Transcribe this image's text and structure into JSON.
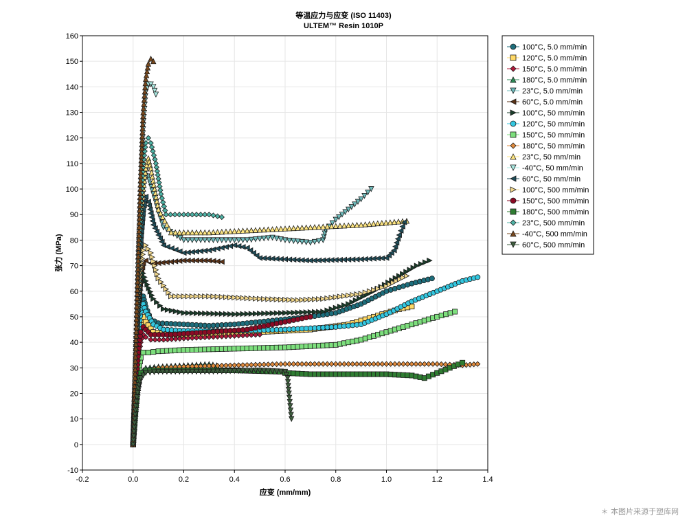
{
  "chart_data": {
    "type": "scatter",
    "title": "等温应力与应变 (ISO 11403)",
    "subtitle": "ULTEM™ Resin 1010P",
    "xlabel": "应变 (mm/mm)",
    "ylabel": "张力 (MPa)",
    "xlim": [
      -0.2,
      1.4
    ],
    "ylim": [
      -10,
      160
    ],
    "xticks": [
      "-0.2",
      "0.0",
      "0.2",
      "0.4",
      "0.6",
      "0.8",
      "1.0",
      "1.2",
      "1.4"
    ],
    "yticks": [
      "-10",
      "0",
      "10",
      "20",
      "30",
      "40",
      "50",
      "60",
      "70",
      "80",
      "90",
      "100",
      "110",
      "120",
      "130",
      "140",
      "150",
      "160"
    ],
    "grid": true,
    "legend_position": "right",
    "series": [
      {
        "name": "100°C, 5.0 mm/min",
        "color": "#1d6e7c",
        "marker": "circle",
        "points": [
          [
            0,
            0
          ],
          [
            0.01,
            25
          ],
          [
            0.02,
            45
          ],
          [
            0.03,
            55
          ],
          [
            0.04,
            58
          ],
          [
            0.05,
            54
          ],
          [
            0.07,
            49
          ],
          [
            0.1,
            47.5
          ],
          [
            0.2,
            47
          ],
          [
            0.3,
            46.5
          ],
          [
            0.4,
            47
          ],
          [
            0.5,
            48
          ],
          [
            0.6,
            49
          ],
          [
            0.7,
            50
          ],
          [
            0.8,
            51.5
          ],
          [
            0.9,
            55
          ],
          [
            1.0,
            60
          ],
          [
            1.1,
            63
          ],
          [
            1.18,
            65
          ]
        ]
      },
      {
        "name": "120°C, 5.0 mm/min",
        "color": "#ffd966",
        "marker": "square",
        "points": [
          [
            0,
            0
          ],
          [
            0.01,
            20
          ],
          [
            0.02,
            38
          ],
          [
            0.03,
            46
          ],
          [
            0.04,
            50
          ],
          [
            0.05,
            48
          ],
          [
            0.08,
            44
          ],
          [
            0.15,
            43
          ],
          [
            0.3,
            43
          ],
          [
            0.5,
            44
          ],
          [
            0.7,
            45
          ],
          [
            0.85,
            47
          ],
          [
            0.95,
            50
          ],
          [
            1.05,
            53
          ],
          [
            1.1,
            54
          ]
        ]
      },
      {
        "name": "150°C, 5.0 mm/min",
        "color": "#b0183a",
        "marker": "diamond",
        "points": [
          [
            0,
            0
          ],
          [
            0.01,
            18
          ],
          [
            0.02,
            32
          ],
          [
            0.03,
            40
          ],
          [
            0.04,
            43
          ],
          [
            0.05,
            42
          ],
          [
            0.07,
            41
          ],
          [
            0.12,
            41
          ],
          [
            0.2,
            41.5
          ],
          [
            0.3,
            42
          ],
          [
            0.4,
            42.5
          ],
          [
            0.5,
            43
          ]
        ]
      },
      {
        "name": "180°C, 5.0 mm/min",
        "color": "#2e8b57",
        "marker": "triangle-up",
        "points": [
          [
            0,
            0
          ],
          [
            0.01,
            12
          ],
          [
            0.02,
            22
          ],
          [
            0.03,
            28
          ],
          [
            0.05,
            30
          ],
          [
            0.1,
            30.5
          ],
          [
            0.2,
            31
          ],
          [
            0.3,
            31.5
          ],
          [
            0.33,
            31
          ]
        ]
      },
      {
        "name": "23°C, 5.0 mm/min",
        "color": "#6fbcbc",
        "marker": "triangle-down",
        "points": [
          [
            0,
            0
          ],
          [
            0.01,
            30
          ],
          [
            0.02,
            60
          ],
          [
            0.03,
            85
          ],
          [
            0.04,
            100
          ],
          [
            0.05,
            107
          ],
          [
            0.06,
            105
          ],
          [
            0.08,
            98
          ],
          [
            0.12,
            85
          ],
          [
            0.2,
            80
          ],
          [
            0.3,
            80
          ],
          [
            0.45,
            80
          ],
          [
            0.55,
            81
          ],
          [
            0.6,
            80
          ],
          [
            0.7,
            79
          ],
          [
            0.75,
            80
          ],
          [
            0.76,
            84
          ],
          [
            0.8,
            88
          ],
          [
            0.85,
            92
          ],
          [
            0.9,
            96
          ],
          [
            0.94,
            100
          ]
        ]
      },
      {
        "name": "60°C, 5.0 mm/min",
        "color": "#5c3317",
        "marker": "triangle-left",
        "points": [
          [
            0,
            0
          ],
          [
            0.01,
            28
          ],
          [
            0.02,
            52
          ],
          [
            0.03,
            66
          ],
          [
            0.04,
            71
          ],
          [
            0.05,
            72
          ],
          [
            0.07,
            71
          ],
          [
            0.1,
            71
          ],
          [
            0.2,
            72
          ],
          [
            0.3,
            72
          ],
          [
            0.35,
            71.5
          ]
        ]
      },
      {
        "name": "100°C, 50 mm/min",
        "color": "#1a3d2a",
        "marker": "triangle-right",
        "points": [
          [
            0,
            0
          ],
          [
            0.01,
            25
          ],
          [
            0.02,
            48
          ],
          [
            0.03,
            62
          ],
          [
            0.04,
            67
          ],
          [
            0.05,
            64
          ],
          [
            0.08,
            57
          ],
          [
            0.12,
            53
          ],
          [
            0.2,
            51.5
          ],
          [
            0.4,
            51
          ],
          [
            0.6,
            51.5
          ],
          [
            0.75,
            52
          ],
          [
            0.85,
            55
          ],
          [
            0.95,
            60
          ],
          [
            1.05,
            66
          ],
          [
            1.12,
            70
          ],
          [
            1.17,
            72
          ]
        ]
      },
      {
        "name": "120°C, 50 mm/min",
        "color": "#33c7e0",
        "marker": "circle",
        "points": [
          [
            0,
            0
          ],
          [
            0.01,
            22
          ],
          [
            0.02,
            42
          ],
          [
            0.03,
            52
          ],
          [
            0.04,
            55
          ],
          [
            0.05,
            52
          ],
          [
            0.08,
            47
          ],
          [
            0.12,
            45
          ],
          [
            0.2,
            44.5
          ],
          [
            0.4,
            44.5
          ],
          [
            0.6,
            45
          ],
          [
            0.8,
            46
          ],
          [
            0.9,
            47
          ],
          [
            1.0,
            51
          ],
          [
            1.1,
            56
          ],
          [
            1.2,
            60
          ],
          [
            1.3,
            64
          ],
          [
            1.36,
            65.5
          ]
        ]
      },
      {
        "name": "150°C, 50 mm/min",
        "color": "#7ddf7d",
        "marker": "square",
        "points": [
          [
            0,
            0
          ],
          [
            0.01,
            16
          ],
          [
            0.02,
            28
          ],
          [
            0.03,
            34
          ],
          [
            0.04,
            36
          ],
          [
            0.06,
            36
          ],
          [
            0.1,
            36.5
          ],
          [
            0.2,
            37
          ],
          [
            0.4,
            37.5
          ],
          [
            0.6,
            38
          ],
          [
            0.8,
            39
          ],
          [
            0.9,
            41
          ],
          [
            1.0,
            44
          ],
          [
            1.1,
            47
          ],
          [
            1.2,
            50
          ],
          [
            1.27,
            52
          ]
        ]
      },
      {
        "name": "180°C, 50 mm/min",
        "color": "#e08a3c",
        "marker": "diamond",
        "points": [
          [
            0,
            0
          ],
          [
            0.01,
            12
          ],
          [
            0.02,
            22
          ],
          [
            0.03,
            27
          ],
          [
            0.05,
            29
          ],
          [
            0.1,
            30
          ],
          [
            0.2,
            30.5
          ],
          [
            0.4,
            31
          ],
          [
            0.6,
            31.5
          ],
          [
            0.8,
            31.5
          ],
          [
            1.0,
            31.5
          ],
          [
            1.2,
            31.5
          ],
          [
            1.3,
            31
          ],
          [
            1.36,
            31.5
          ]
        ]
      },
      {
        "name": "23°C, 50 mm/min",
        "color": "#ffe680",
        "marker": "triangle-up",
        "points": [
          [
            0,
            0
          ],
          [
            0.01,
            30
          ],
          [
            0.02,
            60
          ],
          [
            0.03,
            85
          ],
          [
            0.04,
            100
          ],
          [
            0.05,
            108
          ],
          [
            0.06,
            112
          ],
          [
            0.07,
            108
          ],
          [
            0.1,
            92
          ],
          [
            0.15,
            83
          ],
          [
            0.3,
            83
          ],
          [
            0.5,
            84
          ],
          [
            0.7,
            85
          ],
          [
            0.9,
            86
          ],
          [
            1.08,
            87.5
          ]
        ]
      },
      {
        "name": "-40°C, 50 mm/min",
        "color": "#a9e8e0",
        "marker": "triangle-down",
        "points": [
          [
            0,
            0
          ],
          [
            0.01,
            35
          ],
          [
            0.02,
            70
          ],
          [
            0.03,
            100
          ],
          [
            0.04,
            125
          ],
          [
            0.05,
            138
          ],
          [
            0.06,
            141
          ],
          [
            0.07,
            141
          ],
          [
            0.08,
            140
          ],
          [
            0.09,
            137
          ]
        ]
      },
      {
        "name": "60°C, 50 mm/min",
        "color": "#1f4e5a",
        "marker": "triangle-left",
        "points": [
          [
            0,
            0
          ],
          [
            0.01,
            30
          ],
          [
            0.02,
            58
          ],
          [
            0.03,
            80
          ],
          [
            0.04,
            92
          ],
          [
            0.05,
            97
          ],
          [
            0.06,
            95
          ],
          [
            0.08,
            86
          ],
          [
            0.12,
            78
          ],
          [
            0.2,
            75
          ],
          [
            0.3,
            76
          ],
          [
            0.4,
            78
          ],
          [
            0.45,
            77
          ],
          [
            0.5,
            73
          ],
          [
            0.7,
            72
          ],
          [
            0.9,
            72.5
          ],
          [
            1.0,
            73
          ],
          [
            1.03,
            76
          ],
          [
            1.05,
            82
          ],
          [
            1.07,
            87
          ]
        ]
      },
      {
        "name": "100°C, 500 mm/min",
        "color": "#f2d88c",
        "marker": "triangle-right",
        "points": [
          [
            0,
            0
          ],
          [
            0.01,
            28
          ],
          [
            0.02,
            52
          ],
          [
            0.03,
            68
          ],
          [
            0.04,
            76
          ],
          [
            0.05,
            78
          ],
          [
            0.07,
            75
          ],
          [
            0.1,
            65
          ],
          [
            0.15,
            58
          ],
          [
            0.3,
            58
          ],
          [
            0.5,
            57
          ],
          [
            0.65,
            56.5
          ],
          [
            0.75,
            57
          ],
          [
            0.9,
            59
          ],
          [
            1.0,
            62
          ],
          [
            1.08,
            66
          ]
        ]
      },
      {
        "name": "150°C, 500 mm/min",
        "color": "#8b0a24",
        "marker": "circle",
        "points": [
          [
            0,
            0
          ],
          [
            0.01,
            20
          ],
          [
            0.02,
            36
          ],
          [
            0.03,
            44
          ],
          [
            0.04,
            46
          ],
          [
            0.05,
            45
          ],
          [
            0.07,
            43
          ],
          [
            0.15,
            43
          ],
          [
            0.3,
            44
          ],
          [
            0.45,
            45
          ],
          [
            0.55,
            47
          ],
          [
            0.65,
            49
          ],
          [
            0.7,
            50
          ]
        ]
      },
      {
        "name": "180°C, 500 mm/min",
        "color": "#2f7d32",
        "marker": "square",
        "points": [
          [
            0,
            0
          ],
          [
            0.01,
            14
          ],
          [
            0.02,
            24
          ],
          [
            0.03,
            28
          ],
          [
            0.05,
            29
          ],
          [
            0.1,
            29
          ],
          [
            0.2,
            29
          ],
          [
            0.4,
            29
          ],
          [
            0.58,
            28.5
          ],
          [
            0.6,
            28
          ],
          [
            0.7,
            27.5
          ],
          [
            0.8,
            27.5
          ],
          [
            0.9,
            27.5
          ],
          [
            1.0,
            27.5
          ],
          [
            1.1,
            27
          ],
          [
            1.15,
            26
          ],
          [
            1.2,
            28
          ],
          [
            1.25,
            30
          ],
          [
            1.3,
            32
          ]
        ]
      },
      {
        "name": "23°C, 500 mm/min",
        "color": "#4fb3a6",
        "marker": "diamond",
        "points": [
          [
            0,
            0
          ],
          [
            0.01,
            32
          ],
          [
            0.02,
            65
          ],
          [
            0.03,
            92
          ],
          [
            0.04,
            110
          ],
          [
            0.05,
            118
          ],
          [
            0.06,
            120
          ],
          [
            0.07,
            118
          ],
          [
            0.09,
            110
          ],
          [
            0.11,
            98
          ],
          [
            0.13,
            90
          ],
          [
            0.2,
            90
          ],
          [
            0.3,
            90
          ],
          [
            0.35,
            89
          ]
        ]
      },
      {
        "name": "-40°C, 500 mm/min",
        "color": "#7a4a1e",
        "marker": "triangle-up",
        "points": [
          [
            0,
            0
          ],
          [
            0.01,
            36
          ],
          [
            0.02,
            72
          ],
          [
            0.03,
            105
          ],
          [
            0.04,
            130
          ],
          [
            0.05,
            143
          ],
          [
            0.06,
            149
          ],
          [
            0.07,
            151
          ],
          [
            0.08,
            150
          ]
        ]
      },
      {
        "name": "60°C, 500 mm/min",
        "color": "#3e5e3e",
        "marker": "triangle-down",
        "points": [
          [
            0,
            0
          ],
          [
            0.01,
            15
          ],
          [
            0.02,
            22
          ],
          [
            0.03,
            26
          ],
          [
            0.05,
            28
          ],
          [
            0.1,
            28.5
          ],
          [
            0.3,
            28.5
          ],
          [
            0.5,
            29
          ],
          [
            0.6,
            28.5
          ],
          [
            0.61,
            26
          ],
          [
            0.615,
            20
          ],
          [
            0.62,
            15
          ],
          [
            0.625,
            10
          ]
        ]
      }
    ]
  },
  "watermark": "＊ 本图片来源于塑库网"
}
